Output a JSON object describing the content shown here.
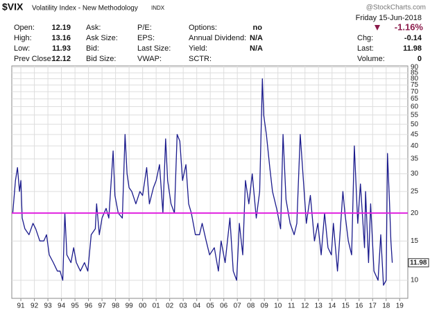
{
  "quote": {
    "symbol": "$VIX",
    "name": "Volatility Index - New Methodology",
    "exchange": "INDX",
    "source": "@StockCharts.com",
    "date": "Friday 15-Jun-2018",
    "change_pct": "-1.16%",
    "columns": [
      [
        {
          "label": "Open:",
          "value": "12.19"
        },
        {
          "label": "High:",
          "value": "13.16"
        },
        {
          "label": "Low:",
          "value": "11.93"
        },
        {
          "label": "Prev Close:",
          "value": "12.12"
        }
      ],
      [
        {
          "label": "Ask:"
        },
        {
          "label": "Ask Size:"
        },
        {
          "label": "Bid:"
        },
        {
          "label": "Bid Size:"
        }
      ],
      [
        {
          "label": "P/E:"
        },
        {
          "label": "EPS:"
        },
        {
          "label": "Last Size:"
        },
        {
          "label": "VWAP:"
        }
      ],
      [
        {
          "label": "Options:",
          "value": "no"
        },
        {
          "label": "Annual Dividend:",
          "value": "N/A"
        },
        {
          "label": "Yield:",
          "value": "N/A"
        },
        {
          "label": "SCTR:"
        }
      ],
      [
        {
          "label": "Chg:",
          "value": "-0.14"
        },
        {
          "label": "Last:",
          "value": "11.98"
        },
        {
          "label": "Volume:",
          "value": "0"
        }
      ]
    ]
  },
  "chart_data": {
    "type": "line",
    "color": "#1a1a8c",
    "yscale": "log",
    "grid": true,
    "reference_line": {
      "value": 20,
      "color": "#e020e0"
    },
    "xlim": [
      1990.33,
      2019.6
    ],
    "ylim": [
      8.3,
      91.3
    ],
    "xticks": [
      {
        "value": 1991,
        "label": "91"
      },
      {
        "value": 1992,
        "label": "92"
      },
      {
        "value": 1993,
        "label": "93"
      },
      {
        "value": 1994,
        "label": "94"
      },
      {
        "value": 1995,
        "label": "95"
      },
      {
        "value": 1996,
        "label": "96"
      },
      {
        "value": 1997,
        "label": "97"
      },
      {
        "value": 1998,
        "label": "98"
      },
      {
        "value": 1999,
        "label": "99"
      },
      {
        "value": 2000,
        "label": "00"
      },
      {
        "value": 2001,
        "label": "01"
      },
      {
        "value": 2002,
        "label": "02"
      },
      {
        "value": 2003,
        "label": "03"
      },
      {
        "value": 2004,
        "label": "04"
      },
      {
        "value": 2005,
        "label": "05"
      },
      {
        "value": 2006,
        "label": "06"
      },
      {
        "value": 2007,
        "label": "07"
      },
      {
        "value": 2008,
        "label": "08"
      },
      {
        "value": 2009,
        "label": "09"
      },
      {
        "value": 2010,
        "label": "10"
      },
      {
        "value": 2011,
        "label": "11"
      },
      {
        "value": 2012,
        "label": "12"
      },
      {
        "value": 2013,
        "label": "13"
      },
      {
        "value": 2014,
        "label": "14"
      },
      {
        "value": 2015,
        "label": "15"
      },
      {
        "value": 2016,
        "label": "16"
      },
      {
        "value": 2017,
        "label": "17"
      },
      {
        "value": 2018,
        "label": "18"
      },
      {
        "value": 2019,
        "label": "19"
      }
    ],
    "yticks": [
      10,
      15,
      20,
      25,
      30,
      35,
      40,
      45,
      50,
      55,
      60,
      65,
      70,
      75,
      80,
      85,
      90
    ],
    "x": [
      1990.4,
      1990.6,
      1990.75,
      1990.9,
      1991.0,
      1991.1,
      1991.3,
      1991.6,
      1991.9,
      1992.1,
      1992.4,
      1992.7,
      1992.9,
      1993.1,
      1993.4,
      1993.7,
      1993.9,
      1994.1,
      1994.25,
      1994.4,
      1994.7,
      1994.9,
      1995.1,
      1995.4,
      1995.7,
      1995.95,
      1996.2,
      1996.5,
      1996.6,
      1996.8,
      1997.0,
      1997.3,
      1997.5,
      1997.82,
      1997.95,
      1998.2,
      1998.5,
      1998.7,
      1998.85,
      1999.0,
      1999.2,
      1999.5,
      1999.8,
      2000.0,
      2000.3,
      2000.5,
      2000.8,
      2001.0,
      2001.25,
      2001.5,
      2001.7,
      2001.85,
      2002.1,
      2002.35,
      2002.55,
      2002.75,
      2002.95,
      2003.2,
      2003.4,
      2003.6,
      2003.9,
      2004.2,
      2004.4,
      2004.7,
      2004.95,
      2005.3,
      2005.6,
      2005.8,
      2006.1,
      2006.45,
      2006.7,
      2006.95,
      2007.15,
      2007.4,
      2007.6,
      2007.85,
      2008.1,
      2008.4,
      2008.65,
      2008.85,
      2008.95,
      2009.15,
      2009.4,
      2009.6,
      2009.9,
      2010.2,
      2010.38,
      2010.6,
      2010.9,
      2011.2,
      2011.4,
      2011.65,
      2011.85,
      2012.1,
      2012.4,
      2012.7,
      2012.95,
      2013.2,
      2013.45,
      2013.7,
      2013.95,
      2014.1,
      2014.4,
      2014.8,
      2014.95,
      2015.2,
      2015.45,
      2015.65,
      2015.9,
      2016.1,
      2016.4,
      2016.48,
      2016.7,
      2016.85,
      2017.1,
      2017.4,
      2017.6,
      2017.8,
      2018.0,
      2018.1,
      2018.25,
      2018.35,
      2018.45
    ],
    "values": [
      20,
      28,
      32,
      25,
      28,
      19,
      17,
      16,
      18,
      17,
      15,
      15,
      16,
      13,
      12,
      11,
      11,
      10,
      20,
      13,
      12,
      14,
      12,
      11,
      12,
      11,
      16,
      17,
      22,
      16,
      19,
      21,
      19,
      38,
      24,
      20,
      19,
      45,
      30,
      26,
      25,
      22,
      25,
      24,
      32,
      22,
      26,
      28,
      33,
      20,
      43,
      28,
      22,
      20,
      45,
      42,
      28,
      33,
      22,
      20,
      16,
      16,
      18,
      15,
      13,
      14,
      11,
      15,
      12,
      19,
      11,
      10,
      18,
      13,
      28,
      22,
      30,
      19,
      25,
      80,
      55,
      45,
      32,
      25,
      21,
      17,
      45,
      23,
      18,
      16,
      18,
      45,
      30,
      18,
      24,
      15,
      18,
      13,
      20,
      14,
      13,
      18,
      11,
      25,
      20,
      15,
      13,
      40,
      18,
      27,
      14,
      25,
      12,
      22,
      11,
      10,
      16,
      9.5,
      10,
      37,
      22,
      15,
      11.98
    ]
  }
}
